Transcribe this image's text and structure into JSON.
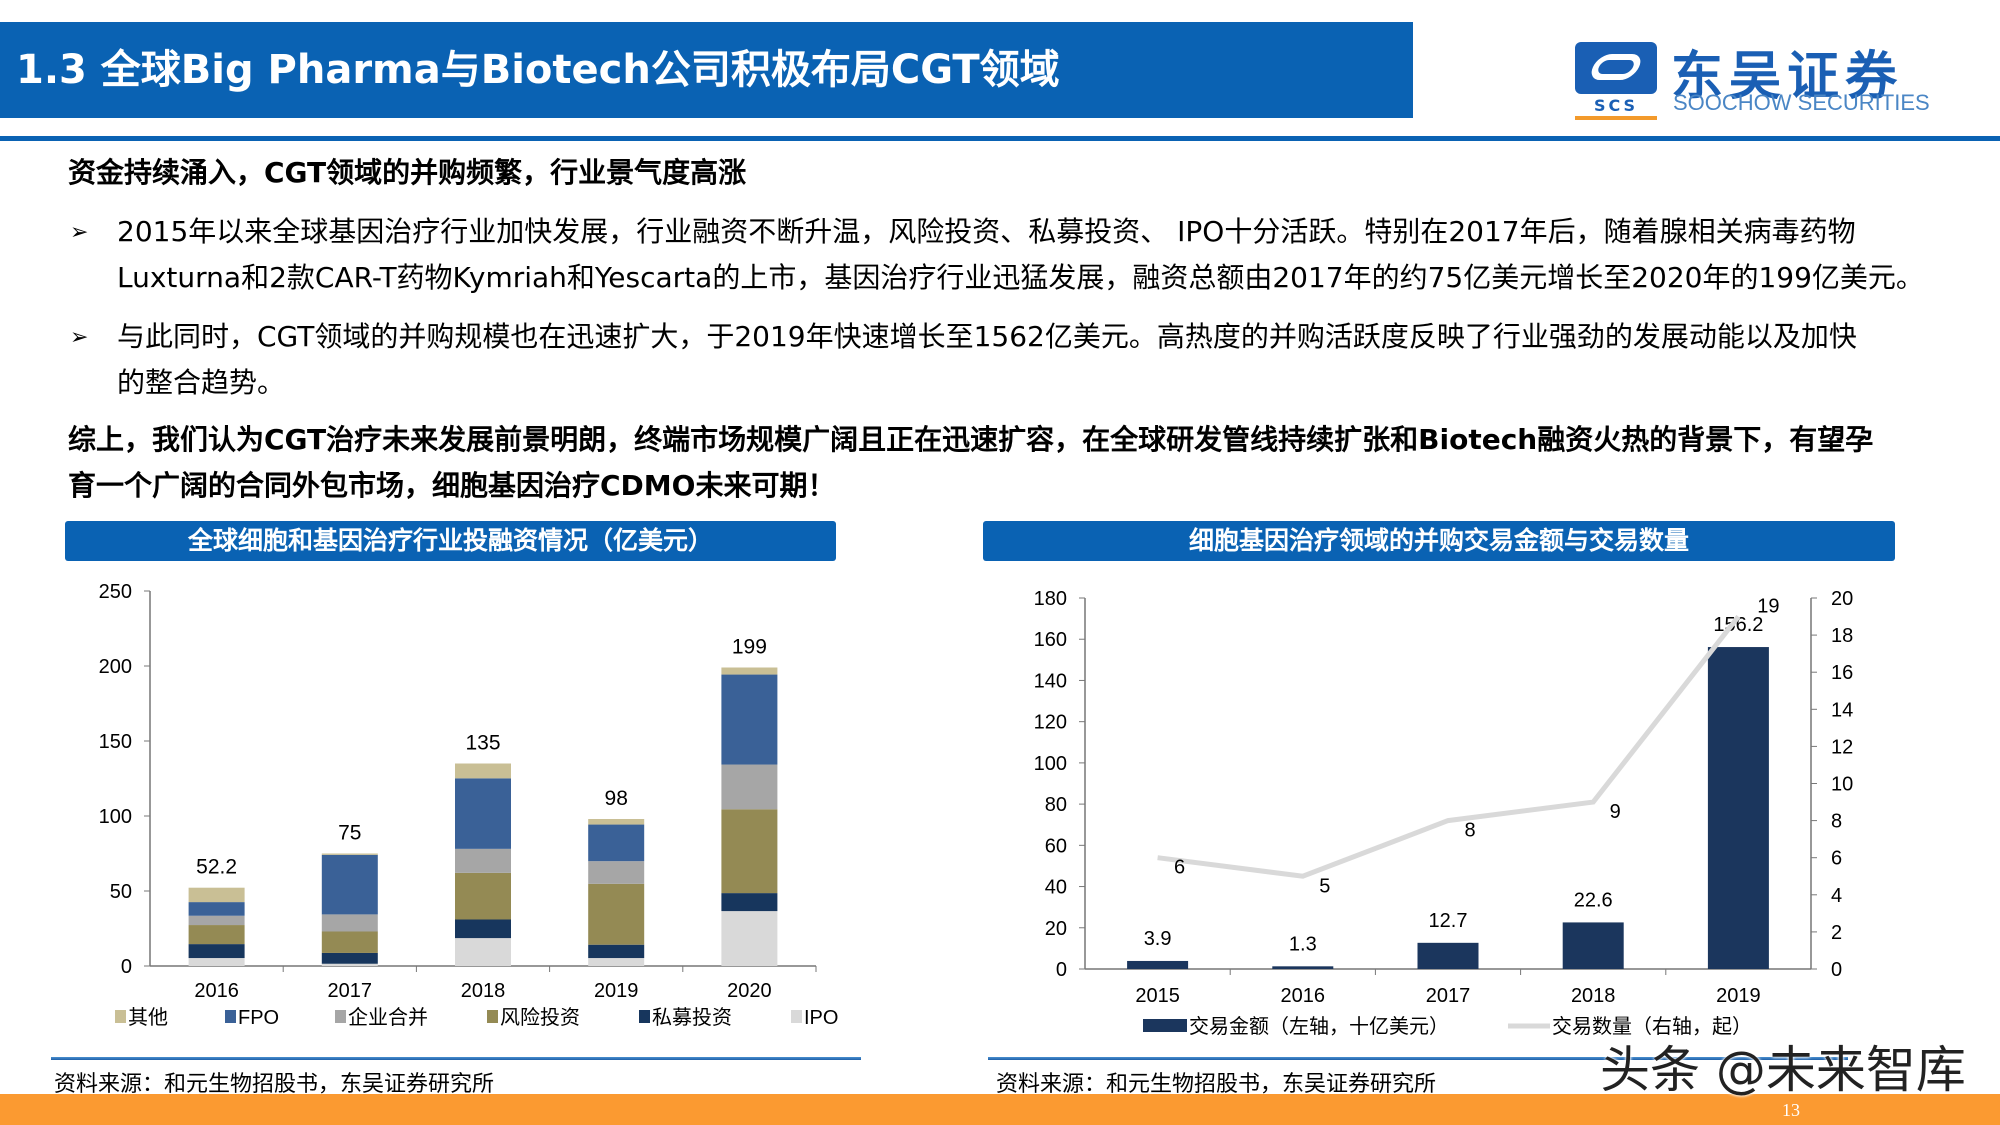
{
  "header": {
    "title": "1.3 全球Big Pharma与Biotech公司积极布局CGT领域"
  },
  "logo": {
    "cn": "东吴证券",
    "en": "SOOCHOW SECURITIES",
    "mark": "SCS"
  },
  "body": {
    "heading": "资金持续涌入，CGT领域的并购频繁，行业景气度高涨",
    "bullet_symbol": "➢",
    "bullets": [
      {
        "line1": "2015年以来全球基因治疗行业加快发展，行业融资不断升温，风险投资、私募投资、 IPO十分活跃。特别在2017年后，随着腺相关病毒药物",
        "line2": "Luxturna和2款CAR-T药物Kymriah和Yescarta的上市，基因治疗行业迅猛发展，融资总额由2017年的约75亿美元增长至2020年的199亿美元。"
      },
      {
        "line1": "与此同时，CGT领域的并购规模也在迅速扩大，于2019年快速增长至1562亿美元。高热度的并购活跃度反映了行业强劲的发展动能以及加快",
        "line2": "的整合趋势。"
      }
    ],
    "conclusion_line1": "综上，我们认为CGT治疗未来发展前景明朗，终端市场规模广阔且正在迅速扩容，在全球研发管线持续扩张和Biotech融资火热的背景下，有望孕",
    "conclusion_line2": "育一个广阔的合同外包市场，细胞基因治疗CDMO未来可期！"
  },
  "chart_data": [
    {
      "type": "bar",
      "stacked": true,
      "title": "全球细胞和基因治疗行业投融资情况（亿美元）",
      "categories": [
        "2016",
        "2017",
        "2018",
        "2019",
        "2020"
      ],
      "series": [
        {
          "name": "IPO",
          "color": "#d9d9d9",
          "values": [
            5.3,
            1.5,
            18.6,
            5.3,
            36.6
          ]
        },
        {
          "name": "私募投资",
          "color": "#17365d",
          "values": [
            9.3,
            7.2,
            12.4,
            8.9,
            12.0
          ]
        },
        {
          "name": "风险投资",
          "color": "#948a54",
          "values": [
            12.7,
            14.3,
            31.1,
            40.6,
            55.9
          ]
        },
        {
          "name": "企业合并",
          "color": "#a6a6a6",
          "values": [
            6.2,
            11.4,
            16.0,
            15.1,
            29.8
          ]
        },
        {
          "name": "FPO",
          "color": "#3a6197",
          "values": [
            9.1,
            39.7,
            47.0,
            24.4,
            60.0
          ]
        },
        {
          "name": "其他",
          "color": "#c9bf95",
          "values": [
            9.6,
            0.9,
            9.9,
            3.7,
            4.7
          ]
        }
      ],
      "totals": [
        "52.2",
        "75",
        "135",
        "98",
        "199"
      ],
      "legend_order": [
        "其他",
        "FPO",
        "企业合并",
        "风险投资",
        "私募投资",
        "IPO"
      ],
      "legend_position": "bottom",
      "ylim": [
        0,
        250
      ],
      "yticks": [
        "0",
        "50",
        "100",
        "150",
        "200",
        "250"
      ],
      "source": "资料来源：和元生物招股书，东吴证券研究所"
    },
    {
      "type": "bar+line",
      "title": "细胞基因治疗领域的并购交易金额与交易数量",
      "categories": [
        "2015",
        "2016",
        "2017",
        "2018",
        "2019"
      ],
      "series": [
        {
          "name": "交易金额（左轴，十亿美元）",
          "type": "bar",
          "axis": "left",
          "color": "#1b365d",
          "values": [
            3.9,
            1.3,
            12.7,
            22.6,
            156.2
          ],
          "labels": [
            "3.9",
            "1.3",
            "12.7",
            "22.6",
            "156.2"
          ]
        },
        {
          "name": "交易数量（右轴，起）",
          "type": "line",
          "axis": "right",
          "color": "#d9d9d9",
          "values": [
            6,
            5,
            8,
            9,
            19
          ],
          "labels": [
            "6",
            "5",
            "8",
            "9",
            "19"
          ]
        }
      ],
      "legend_position": "bottom",
      "ylim_left": [
        0,
        180
      ],
      "yticks_left": [
        "0",
        "20",
        "40",
        "60",
        "80",
        "100",
        "120",
        "140",
        "160",
        "180"
      ],
      "ylim_right": [
        0,
        20
      ],
      "yticks_right": [
        "0",
        "2",
        "4",
        "6",
        "8",
        "10",
        "12",
        "14",
        "16",
        "18",
        "20"
      ],
      "source": "资料来源：和元生物招股书，东吴证券研究所"
    }
  ],
  "footer": {
    "page_number": "13",
    "watermark": "头条 @未来智库",
    "color": "#fb9a31"
  }
}
